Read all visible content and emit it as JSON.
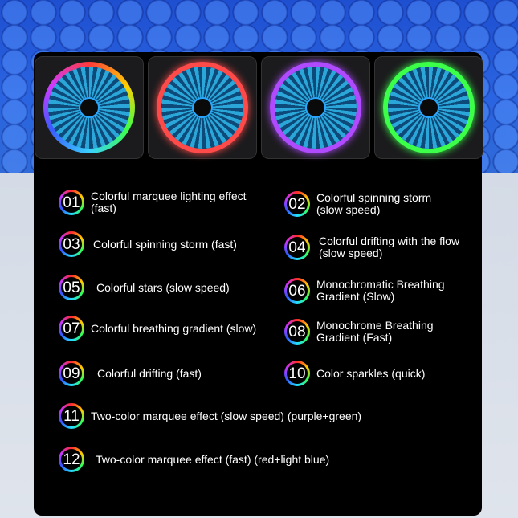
{
  "fans": [
    {
      "ring_color": "#3ad0ff",
      "ring_style": "rainbow"
    },
    {
      "ring_color": "#ff4a4a",
      "ring_style": "red"
    },
    {
      "ring_color": "#b04aff",
      "ring_style": "purple"
    },
    {
      "ring_color": "#3cff4a",
      "ring_style": "green"
    }
  ],
  "modes": [
    {
      "num": "01",
      "label": "Colorful marquee lighting effect\n(fast)"
    },
    {
      "num": "02",
      "label": "Colorful spinning storm\n(slow speed)"
    },
    {
      "num": "03",
      "label": "Colorful spinning storm (fast)"
    },
    {
      "num": "04",
      "label": "Colorful drifting with the flow\n (slow speed)"
    },
    {
      "num": "05",
      "label": "Colorful stars (slow speed)"
    },
    {
      "num": "06",
      "label": "Monochromatic Breathing\n Gradient (Slow)"
    },
    {
      "num": "07",
      "label": "Colorful breathing gradient (slow)"
    },
    {
      "num": "08",
      "label": "Monochrome Breathing\nGradient (Fast)"
    },
    {
      "num": "09",
      "label": "Colorful drifting (fast)"
    },
    {
      "num": "10",
      "label": "Color sparkles (quick)"
    },
    {
      "num": "11",
      "label": "Two-color marquee effect (slow speed) (purple+green)"
    },
    {
      "num": "12",
      "label": "Two-color marquee effect (fast) (red+light blue)"
    }
  ]
}
